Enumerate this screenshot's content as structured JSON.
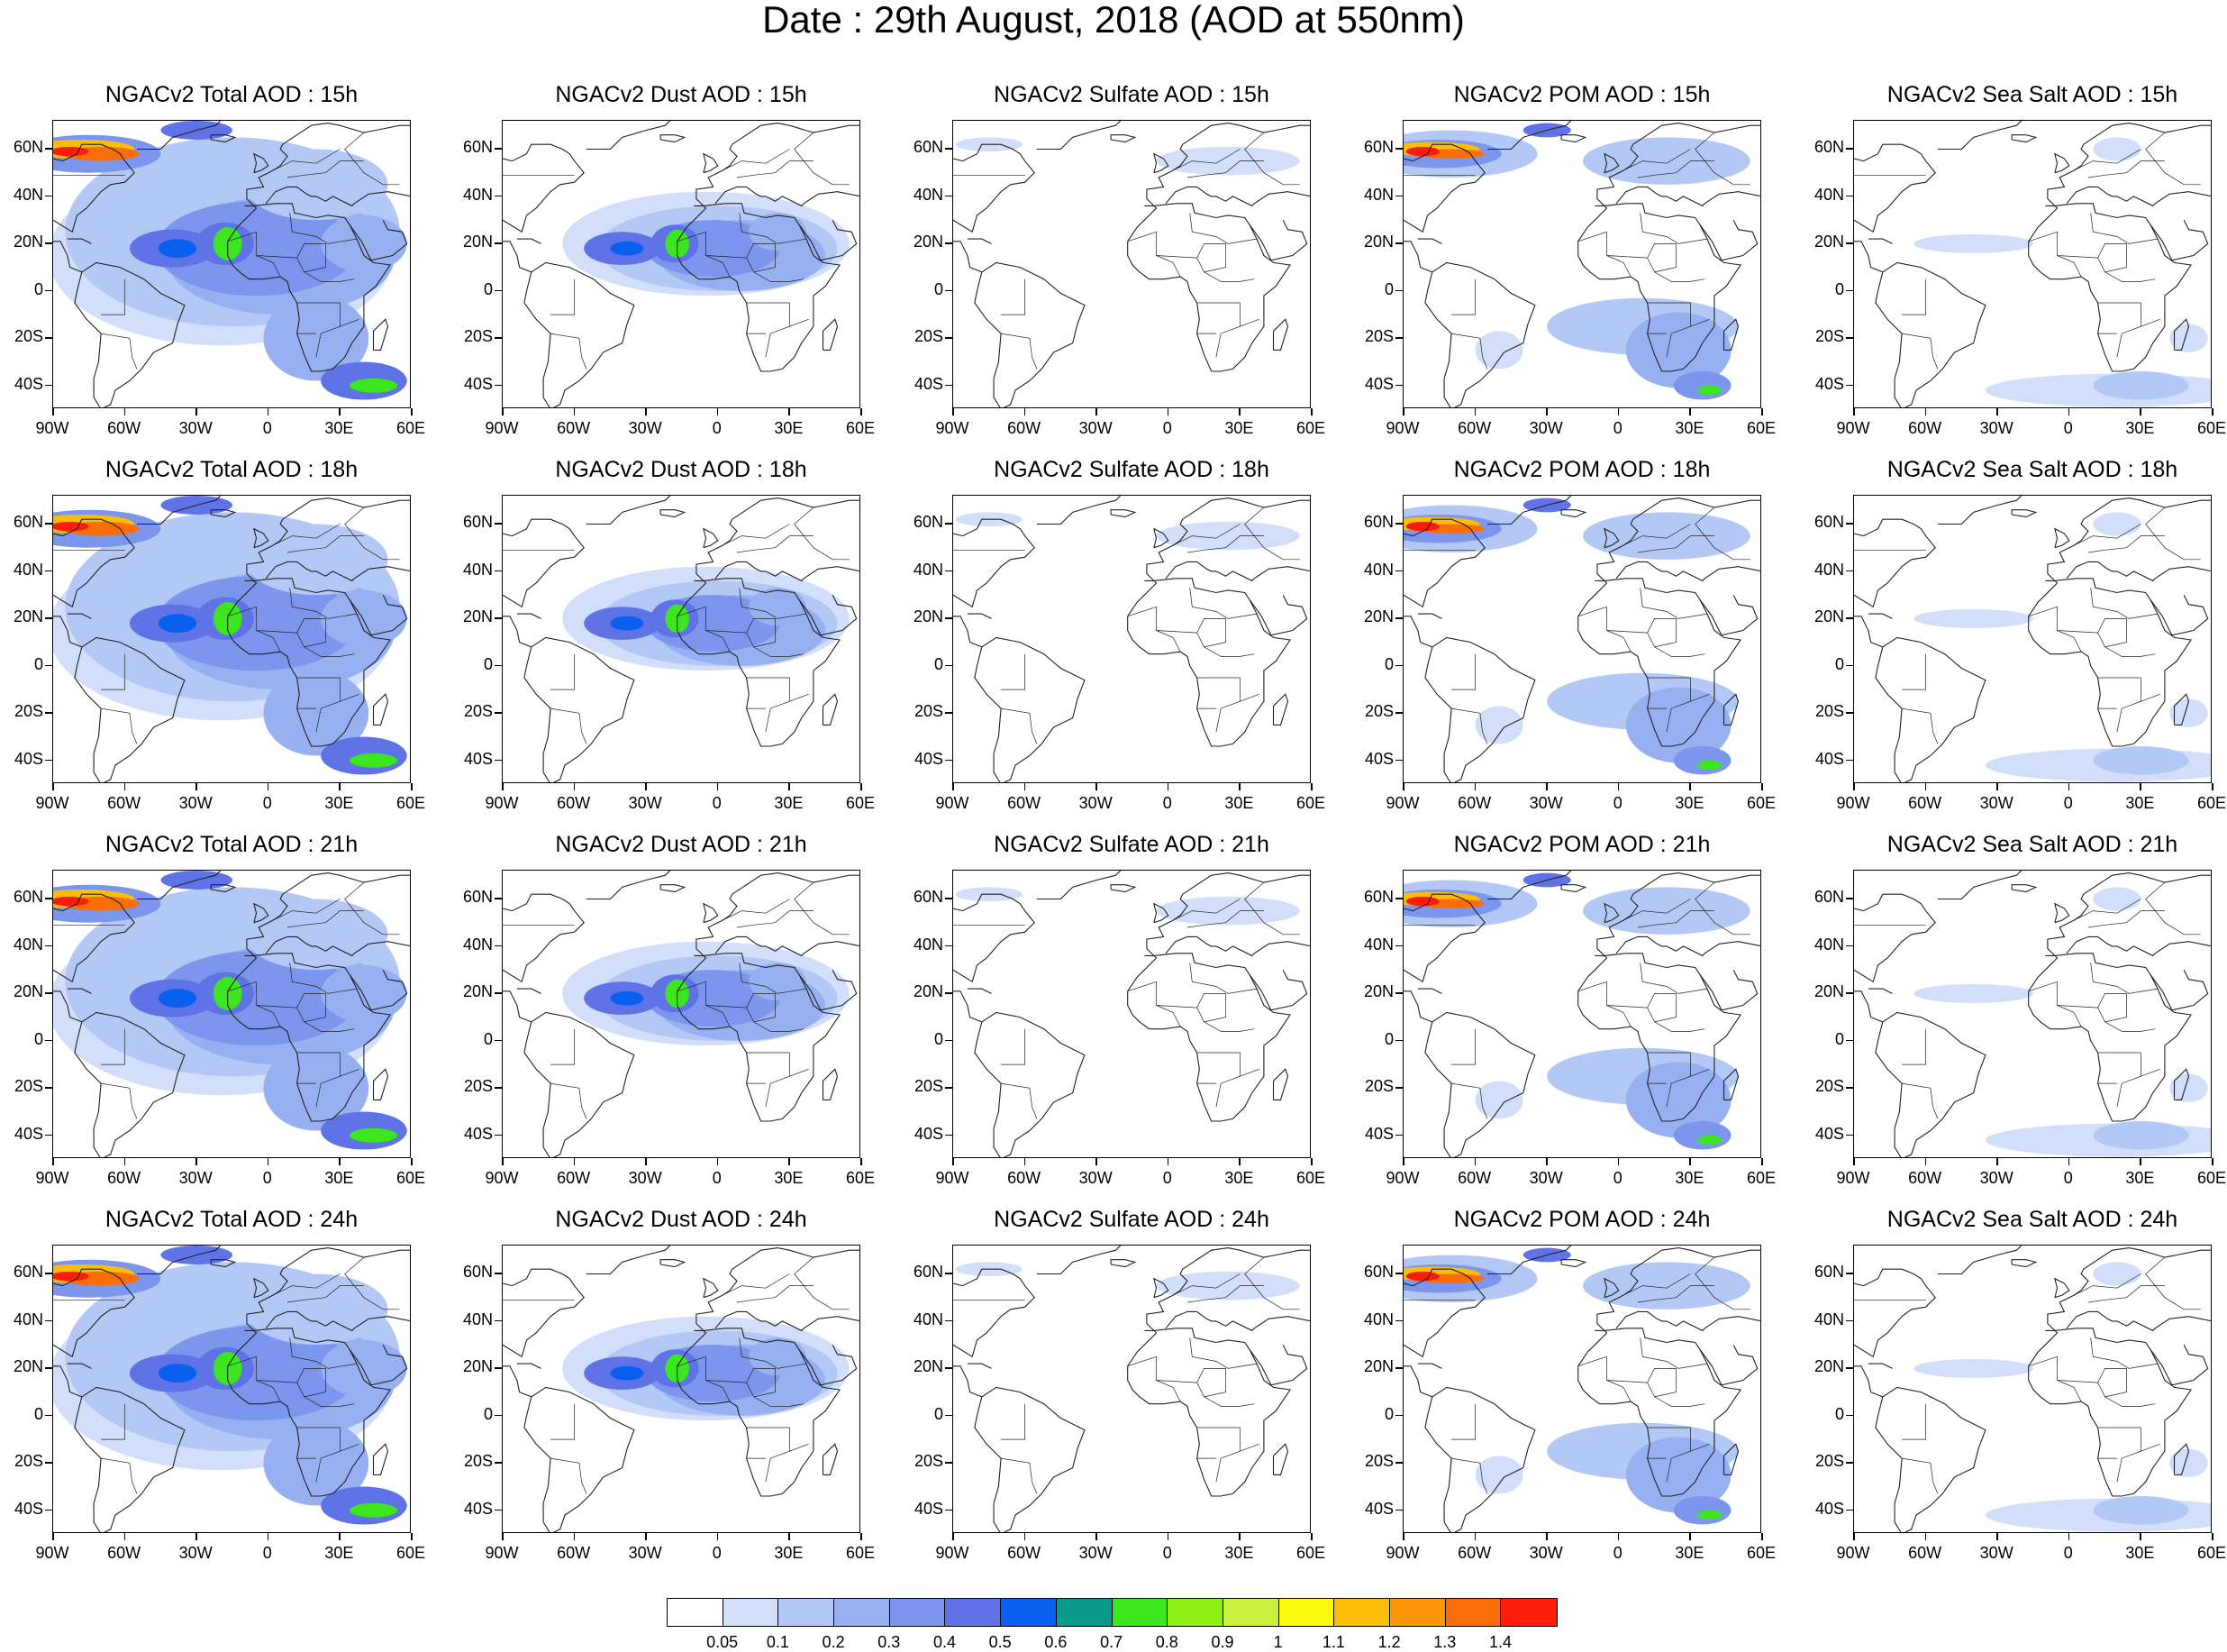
{
  "title": "Date : 29th August, 2018 (AOD at 550nm)",
  "rows": [
    {
      "hour": "15h",
      "titles": [
        "NGACv2 Total AOD : 15h",
        "NGACv2 Dust AOD : 15h",
        "NGACv2 Sulfate AOD : 15h",
        "NGACv2 POM AOD : 15h",
        "NGACv2 Sea Salt AOD : 15h"
      ]
    },
    {
      "hour": "18h",
      "titles": [
        "NGACv2 Total AOD : 18h",
        "NGACv2 Dust AOD : 18h",
        "NGACv2 Sulfate AOD : 18h",
        "NGACv2 POM AOD : 18h",
        "NGACv2 Sea Salt AOD : 18h"
      ]
    },
    {
      "hour": "21h",
      "titles": [
        "NGACv2 Total AOD : 21h",
        "NGACv2 Dust AOD : 21h",
        "NGACv2 Sulfate AOD : 21h",
        "NGACv2 POM AOD : 21h",
        "NGACv2 Sea Salt AOD : 21h"
      ]
    },
    {
      "hour": "24h",
      "titles": [
        "NGACv2 Total AOD : 24h",
        "NGACv2 Dust AOD : 24h",
        "NGACv2 Sulfate AOD : 24h",
        "NGACv2 POM AOD : 24h",
        "NGACv2 Sea Salt  AOD : 24h"
      ]
    }
  ],
  "columns": [
    "Total",
    "Dust",
    "Sulfate",
    "POM",
    "Sea Salt"
  ],
  "lat_ticks": [
    "60N",
    "40N",
    "20N",
    "0",
    "20S",
    "40S"
  ],
  "lon_ticks": [
    "90W",
    "60W",
    "30W",
    "0",
    "30E",
    "60E"
  ],
  "colorbar": {
    "labels": [
      "0.05",
      "0.1",
      "0.2",
      "0.3",
      "0.4",
      "0.5",
      "0.6",
      "0.7",
      "0.8",
      "0.9",
      "1",
      "1.1",
      "1.2",
      "1.3",
      "1.4"
    ],
    "colors": [
      "#ffffff",
      "#d2defa",
      "#b4c8f6",
      "#96b0f2",
      "#7c96ee",
      "#5f72e6",
      "#0a60ee",
      "#0a9a8c",
      "#3ce61e",
      "#8ef012",
      "#c8f03c",
      "#fafa0a",
      "#fabe0a",
      "#fa960a",
      "#fa6e0a",
      "#fa1e0a"
    ]
  }
}
